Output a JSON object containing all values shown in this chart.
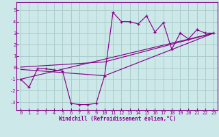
{
  "xlabel": "Windchill (Refroidissement éolien,°C)",
  "bg_color": "#cce8e8",
  "grid_color": "#aacccc",
  "line_color": "#880088",
  "spine_color": "#880088",
  "xlim": [
    -0.5,
    23.5
  ],
  "ylim": [
    -3.7,
    5.7
  ],
  "xticks": [
    0,
    1,
    2,
    3,
    4,
    5,
    6,
    7,
    8,
    9,
    10,
    11,
    12,
    13,
    14,
    15,
    16,
    17,
    18,
    19,
    20,
    21,
    22,
    23
  ],
  "yticks": [
    -3,
    -2,
    -1,
    0,
    1,
    2,
    3,
    4,
    5
  ],
  "series1_x": [
    0,
    1,
    2,
    3,
    4,
    5,
    6,
    7,
    8,
    9,
    10,
    11,
    12,
    13,
    14,
    15,
    16,
    17,
    18,
    19,
    20,
    21,
    22,
    23
  ],
  "series1_y": [
    -1.0,
    -1.7,
    -0.1,
    -0.1,
    -0.2,
    -0.3,
    -3.1,
    -3.2,
    -3.2,
    -3.1,
    -0.7,
    4.8,
    4.0,
    4.0,
    3.8,
    4.5,
    3.1,
    3.9,
    1.6,
    3.0,
    2.5,
    3.3,
    3.0,
    3.0
  ],
  "series2_x": [
    0,
    23
  ],
  "series2_y": [
    -1.0,
    3.0
  ],
  "series3_x": [
    0,
    10,
    23
  ],
  "series3_y": [
    -0.15,
    -0.7,
    3.0
  ],
  "series4_x": [
    0,
    10,
    23
  ],
  "series4_y": [
    0.05,
    0.5,
    3.0
  ],
  "tick_fontsize": 5.0,
  "xlabel_fontsize": 5.5
}
